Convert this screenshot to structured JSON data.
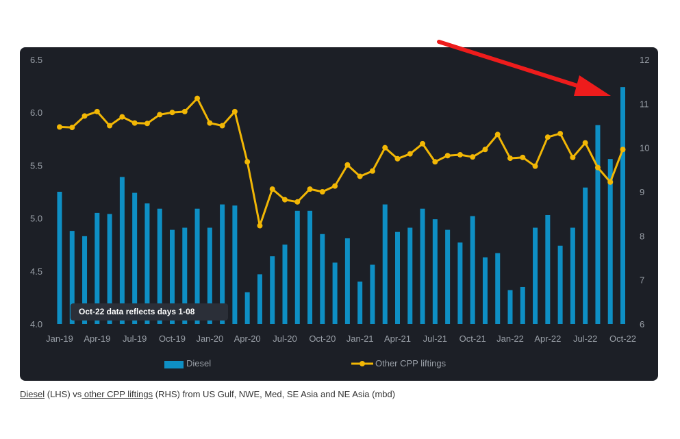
{
  "chart_data": {
    "type": "bar",
    "categories": [
      "Jan-19",
      "Feb-19",
      "Mar-19",
      "Apr-19",
      "May-19",
      "Jun-19",
      "Jul-19",
      "Aug-19",
      "Sep-19",
      "Oct-19",
      "Nov-19",
      "Dec-19",
      "Jan-20",
      "Feb-20",
      "Mar-20",
      "Apr-20",
      "May-20",
      "Jun-20",
      "Jul-20",
      "Aug-20",
      "Sep-20",
      "Oct-20",
      "Nov-20",
      "Dec-20",
      "Jan-21",
      "Feb-21",
      "Mar-21",
      "Apr-21",
      "May-21",
      "Jun-21",
      "Jul-21",
      "Aug-21",
      "Sep-21",
      "Oct-21",
      "Nov-21",
      "Dec-21",
      "Jan-22",
      "Feb-22",
      "Mar-22",
      "Apr-22",
      "May-22",
      "Jun-22",
      "Jul-22",
      "Aug-22",
      "Sep-22",
      "Oct-22"
    ],
    "x_tick_labels": [
      "Jan-19",
      "Apr-19",
      "Jul-19",
      "Oct-19",
      "Jan-20",
      "Apr-20",
      "Jul-20",
      "Oct-20",
      "Jan-21",
      "Apr-21",
      "Jul-21",
      "Oct-21",
      "Jan-22",
      "Apr-22",
      "Jul-22",
      "Oct-22"
    ],
    "series": [
      {
        "name": "Diesel",
        "axis": "left",
        "kind": "bar",
        "color": "#0e8fc4",
        "values": [
          5.25,
          4.88,
          4.83,
          5.05,
          5.04,
          5.39,
          5.24,
          5.14,
          5.09,
          4.89,
          4.91,
          5.09,
          4.91,
          5.13,
          5.12,
          4.3,
          4.47,
          4.64,
          4.75,
          5.07,
          5.07,
          4.85,
          4.58,
          4.81,
          4.4,
          4.56,
          5.13,
          4.87,
          4.91,
          5.09,
          4.99,
          4.89,
          4.77,
          5.02,
          4.63,
          4.67,
          4.32,
          4.35,
          4.91,
          5.03,
          4.74,
          4.91,
          5.29,
          5.88,
          5.56,
          6.24
        ]
      },
      {
        "name": "Other CPP liftings",
        "axis": "right",
        "kind": "line",
        "color": "#f2b705",
        "values": [
          10.47,
          10.46,
          10.72,
          10.82,
          10.5,
          10.7,
          10.56,
          10.55,
          10.75,
          10.8,
          10.82,
          11.12,
          10.56,
          10.5,
          10.82,
          9.68,
          8.23,
          9.06,
          8.82,
          8.77,
          9.06,
          9.0,
          9.13,
          9.61,
          9.35,
          9.47,
          10.0,
          9.75,
          9.86,
          10.09,
          9.68,
          9.82,
          9.84,
          9.79,
          9.96,
          10.3,
          9.76,
          9.78,
          9.58,
          10.24,
          10.32,
          9.78,
          10.11,
          9.55,
          9.22,
          9.96
        ]
      }
    ],
    "ylim_left": [
      4.0,
      6.5
    ],
    "yticks_left": [
      "4.0",
      "4.5",
      "5.0",
      "5.5",
      "6.0",
      "6.5"
    ],
    "ylim_right": [
      6,
      12
    ],
    "yticks_right": [
      "6",
      "7",
      "8",
      "9",
      "10",
      "11",
      "12"
    ],
    "legend_placement": "bottom-center",
    "annotations": [
      {
        "type": "text-box",
        "text": "Oct-22 data reflects days 1-08"
      },
      {
        "type": "arrow",
        "color": "#ee1c1c",
        "points_to": "Oct-22"
      }
    ],
    "grid": false
  },
  "legend": {
    "diesel": "Diesel",
    "other": "Other CPP liftings"
  },
  "note": "Oct-22 data reflects days 1-08",
  "caption": {
    "link1": "Diesel",
    "text1": " (LHS) vs",
    "link2": " other CPP liftings",
    "text2": " (RHS) from US Gulf, NWE, Med, SE Asia and NE Asia (mbd)"
  },
  "colors": {
    "panel": "#1c1f26",
    "bar": "#0e8fc4",
    "line": "#f2b705",
    "arrow": "#ee1c1c",
    "tick": "#9aa0a8"
  }
}
